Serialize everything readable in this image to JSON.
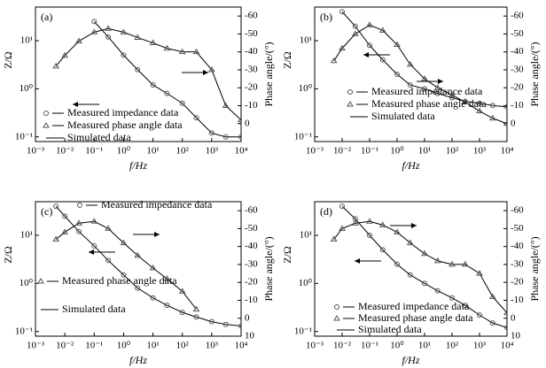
{
  "chart_data": [
    {
      "type": "bode",
      "panel_label": "(a)",
      "xlabel": "f/Hz",
      "ylabel": "Z/Ω",
      "y2label": "Phase angle/(°)",
      "log_x": true,
      "log_y": true,
      "xlim": [
        0.001,
        10000
      ],
      "xticks": [
        {
          "value": 0.001,
          "label": "10⁻³"
        },
        {
          "value": 0.01,
          "label": "10⁻²"
        },
        {
          "value": 0.1,
          "label": "10⁻¹"
        },
        {
          "value": 1,
          "label": "10⁰"
        },
        {
          "value": 10,
          "label": "10¹"
        },
        {
          "value": 100,
          "label": "10²"
        },
        {
          "value": 1000,
          "label": "10³"
        },
        {
          "value": 10000,
          "label": "10⁴"
        }
      ],
      "ylim": [
        0.08,
        50
      ],
      "yticks": [
        {
          "value": 0.1,
          "label": "10⁻¹"
        },
        {
          "value": 1,
          "label": "10⁰"
        },
        {
          "value": 10,
          "label": "10¹"
        }
      ],
      "y2lim": [
        10,
        -65
      ],
      "y2ticks": [
        -60,
        -50,
        -40,
        -30,
        -20,
        -10,
        0
      ],
      "x": [
        0.005,
        0.01,
        0.03,
        0.1,
        0.3,
        1,
        3,
        10,
        30,
        100,
        300,
        1000,
        3000,
        10000
      ],
      "series": [
        {
          "name": "Measured impedance data",
          "marker": "circle",
          "color": "#555555",
          "values": [
            null,
            null,
            null,
            25,
            12,
            5,
            2.5,
            1.2,
            0.8,
            0.5,
            0.25,
            0.12,
            0.1,
            0.1
          ]
        },
        {
          "name": "Measured phase angle data",
          "marker": "triangle",
          "axis": "y2",
          "color": "#555555",
          "values": [
            -32,
            -38,
            -46,
            -51,
            -53,
            -51,
            -48,
            -45,
            -42,
            -40,
            -40,
            -30,
            -10,
            -2
          ]
        }
      ],
      "simulated_label": "Simulated data"
    },
    {
      "type": "bode",
      "panel_label": "(b)",
      "xlabel": "f/Hz",
      "ylabel": "Z/Ω",
      "y2label": "Phase angle/(°)",
      "log_x": true,
      "log_y": true,
      "xlim": [
        0.001,
        10000
      ],
      "xticks": [
        {
          "value": 0.001,
          "label": "10⁻³"
        },
        {
          "value": 0.01,
          "label": "10⁻²"
        },
        {
          "value": 0.1,
          "label": "10⁻¹"
        },
        {
          "value": 1,
          "label": "10⁰"
        },
        {
          "value": 10,
          "label": "10¹"
        },
        {
          "value": 100,
          "label": "10²"
        },
        {
          "value": 1000,
          "label": "10³"
        },
        {
          "value": 10000,
          "label": "10⁴"
        }
      ],
      "ylim": [
        0.08,
        50
      ],
      "yticks": [
        {
          "value": 0.1,
          "label": "10⁻¹"
        },
        {
          "value": 1,
          "label": "10⁰"
        },
        {
          "value": 10,
          "label": "10¹"
        }
      ],
      "y2lim": [
        10,
        -65
      ],
      "y2ticks": [
        -60,
        -50,
        -40,
        -30,
        -20,
        -10,
        0
      ],
      "x": [
        0.005,
        0.01,
        0.03,
        0.1,
        0.3,
        1,
        3,
        10,
        30,
        100,
        300,
        1000,
        3000,
        10000
      ],
      "series": [
        {
          "name": "Measured impedance data",
          "marker": "circle",
          "color": "#555555",
          "values": [
            null,
            40,
            20,
            8,
            4,
            2,
            1.2,
            1,
            0.8,
            0.65,
            0.55,
            0.5,
            0.45,
            0.42
          ]
        },
        {
          "name": "Measured phase angle data",
          "marker": "triangle",
          "axis": "y2",
          "color": "#555555",
          "values": [
            -35,
            -42,
            -50,
            -55,
            -52,
            -44,
            -33,
            -25,
            -20,
            -16,
            -12,
            -7,
            -3,
            0
          ]
        }
      ],
      "simulated_label": "Simulated data"
    },
    {
      "type": "bode",
      "panel_label": "(c)",
      "xlabel": "f/Hz",
      "ylabel": "Z/Ω",
      "y2label": "Phase angle/(°)",
      "log_x": true,
      "log_y": true,
      "xlim": [
        0.001,
        10000
      ],
      "xticks": [
        {
          "value": 0.001,
          "label": "10⁻³"
        },
        {
          "value": 0.01,
          "label": "10⁻²"
        },
        {
          "value": 0.1,
          "label": "10⁻¹"
        },
        {
          "value": 1,
          "label": "10⁰"
        },
        {
          "value": 10,
          "label": "10¹"
        },
        {
          "value": 100,
          "label": "10²"
        },
        {
          "value": 1000,
          "label": "10³"
        },
        {
          "value": 10000,
          "label": "10⁴"
        }
      ],
      "ylim": [
        0.08,
        50
      ],
      "yticks": [
        {
          "value": 0.1,
          "label": "10⁻¹"
        },
        {
          "value": 1,
          "label": "10⁰"
        },
        {
          "value": 10,
          "label": "10¹"
        }
      ],
      "y2lim": [
        10,
        -65
      ],
      "y2ticks": [
        -60,
        -50,
        -40,
        -30,
        -20,
        -10,
        0,
        10
      ],
      "x": [
        0.005,
        0.01,
        0.03,
        0.1,
        0.3,
        1,
        3,
        10,
        30,
        100,
        300,
        1000,
        3000,
        10000
      ],
      "series": [
        {
          "name": "Measured impedance data",
          "marker": "circle",
          "color": "#555555",
          "values": [
            40,
            25,
            12,
            6,
            3,
            1.5,
            0.8,
            0.5,
            0.35,
            0.25,
            0.2,
            0.16,
            0.14,
            0.13
          ]
        },
        {
          "name": "Measured phase angle data",
          "marker": "triangle",
          "axis": "y2",
          "color": "#555555",
          "values": [
            -44,
            -48,
            -53,
            -54,
            -50,
            -42,
            -35,
            -28,
            -22,
            -15,
            -5,
            null,
            null,
            null
          ]
        }
      ],
      "simulated_label": "Simulated data"
    },
    {
      "type": "bode",
      "panel_label": "(d)",
      "xlabel": "f/Hz",
      "ylabel": "Z/Ω",
      "y2label": "Phase angle/(°)",
      "log_x": true,
      "log_y": true,
      "xlim": [
        0.001,
        10000
      ],
      "xticks": [
        {
          "value": 0.001,
          "label": "10⁻³"
        },
        {
          "value": 0.01,
          "label": "10⁻²"
        },
        {
          "value": 0.1,
          "label": "10⁻¹"
        },
        {
          "value": 1,
          "label": "10⁰"
        },
        {
          "value": 10,
          "label": "10¹"
        },
        {
          "value": 100,
          "label": "10²"
        },
        {
          "value": 1000,
          "label": "10³"
        },
        {
          "value": 10000,
          "label": "10⁴"
        }
      ],
      "ylim": [
        0.08,
        50
      ],
      "yticks": [
        {
          "value": 0.1,
          "label": "10⁻¹"
        },
        {
          "value": 1,
          "label": "10⁰"
        },
        {
          "value": 10,
          "label": "10¹"
        }
      ],
      "y2lim": [
        10,
        -65
      ],
      "y2ticks": [
        -60,
        -50,
        -40,
        -30,
        -20,
        -10,
        0,
        10
      ],
      "x": [
        0.005,
        0.01,
        0.03,
        0.1,
        0.3,
        1,
        3,
        10,
        30,
        100,
        300,
        1000,
        3000,
        10000
      ],
      "series": [
        {
          "name": "Measured impedance data",
          "marker": "circle",
          "color": "#555555",
          "values": [
            null,
            40,
            22,
            10,
            5,
            2.5,
            1.5,
            1,
            0.7,
            0.5,
            0.35,
            0.22,
            0.15,
            0.12
          ]
        },
        {
          "name": "Measured phase angle data",
          "marker": "triangle",
          "axis": "y2",
          "color": "#555555",
          "values": [
            -44,
            -50,
            -53,
            -54,
            -52,
            -48,
            -42,
            -36,
            -32,
            -30,
            -30,
            -25,
            -12,
            -3
          ]
        }
      ],
      "simulated_label": "Simulated data"
    }
  ]
}
